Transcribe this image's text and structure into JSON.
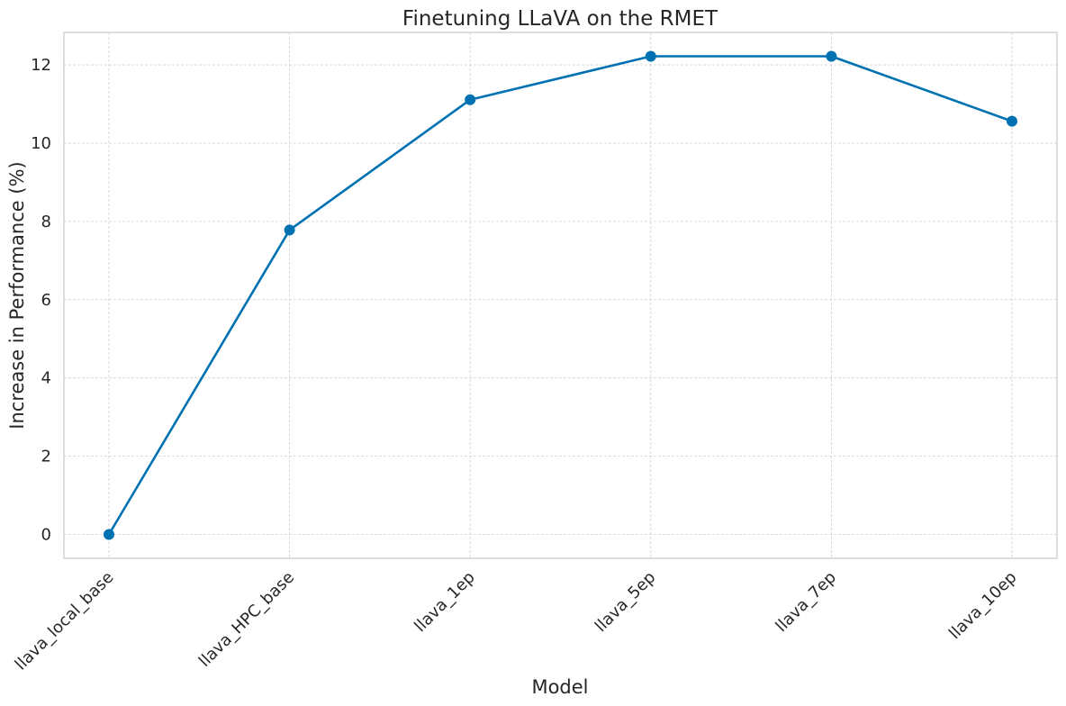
{
  "chart_data": {
    "type": "line",
    "title": "Finetuning LLaVA on the RMET",
    "xlabel": "Model",
    "ylabel": "Increase in Performance (%)",
    "categories": [
      "llava_local_base",
      "llava_HPC_base",
      "llava_1ep",
      "llava_5ep",
      "llava_7ep",
      "llava_10ep"
    ],
    "series": [
      {
        "values": [
          0,
          7.78,
          11.11,
          12.22,
          12.22,
          10.56
        ],
        "color": "#0072b2"
      }
    ],
    "yticks": [
      0,
      2,
      4,
      6,
      8,
      10,
      12
    ],
    "ylim": [
      -0.61,
      12.83
    ],
    "grid": true,
    "legend": "none"
  }
}
